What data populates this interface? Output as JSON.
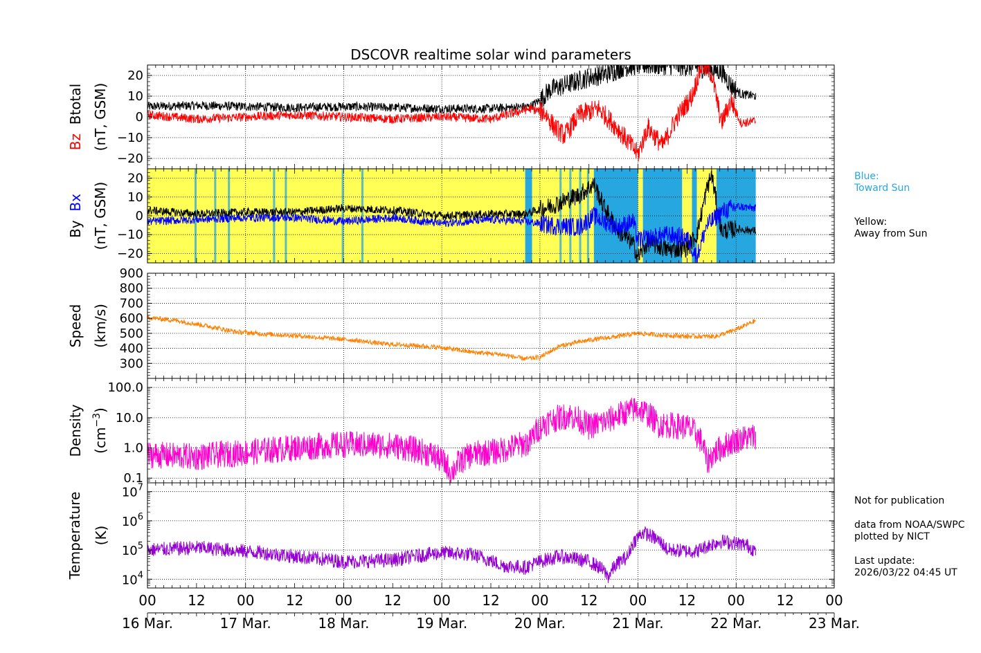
{
  "chart_data": {
    "title": "DSCOVR realtime solar wind parameters",
    "type": "line",
    "x_axis": {
      "hour_ticks": [
        "00",
        "12",
        "00",
        "12",
        "00",
        "12",
        "00",
        "12",
        "00",
        "12",
        "00",
        "12",
        "00",
        "12",
        "00"
      ],
      "date_labels": [
        "16 Mar.",
        "17 Mar.",
        "18 Mar.",
        "19 Mar.",
        "20 Mar.",
        "21 Mar.",
        "22 Mar.",
        "23 Mar."
      ],
      "range_days": [
        0,
        7
      ]
    },
    "panels": [
      {
        "id": "bfield",
        "label_parts": [
          {
            "text": "Bz",
            "color": "#ff0000"
          },
          {
            "text": "Btotal",
            "color": "#000000"
          }
        ],
        "unit": "(nT, GSM)",
        "ylim": [
          -25,
          25
        ],
        "yticks": [
          -20,
          -10,
          0,
          10,
          20
        ],
        "tick_labels": [
          "−20",
          "−10",
          "0",
          "10",
          "20"
        ],
        "series": [
          {
            "name": "Btotal",
            "color": "#000000",
            "keys": [
              [
                0,
                5
              ],
              [
                0.5,
                5.5
              ],
              [
                1,
                5
              ],
              [
                1.5,
                4.5
              ],
              [
                2,
                5
              ],
              [
                2.5,
                4.5
              ],
              [
                3,
                4
              ],
              [
                3.5,
                4
              ],
              [
                3.9,
                5
              ],
              [
                4.0,
                8
              ],
              [
                4.1,
                13
              ],
              [
                4.3,
                16
              ],
              [
                4.5,
                19
              ],
              [
                4.7,
                21
              ],
              [
                4.85,
                24
              ],
              [
                5.0,
                25
              ],
              [
                5.3,
                25
              ],
              [
                5.6,
                24
              ],
              [
                5.85,
                22
              ],
              [
                5.95,
                15
              ],
              [
                6.05,
                11
              ],
              [
                6.2,
                10
              ]
            ]
          },
          {
            "name": "Bz",
            "color": "#ff0000",
            "keys": [
              [
                0,
                1
              ],
              [
                0.5,
                -1
              ],
              [
                1,
                0
              ],
              [
                1.5,
                1
              ],
              [
                2,
                0
              ],
              [
                2.5,
                -1
              ],
              [
                3,
                0
              ],
              [
                3.5,
                -1
              ],
              [
                3.9,
                4
              ],
              [
                4.05,
                2
              ],
              [
                4.15,
                -5
              ],
              [
                4.25,
                -9
              ],
              [
                4.4,
                1
              ],
              [
                4.6,
                4
              ],
              [
                4.8,
                -6
              ],
              [
                5.0,
                -18
              ],
              [
                5.1,
                -5
              ],
              [
                5.25,
                -14
              ],
              [
                5.4,
                0
              ],
              [
                5.55,
                10
              ],
              [
                5.65,
                25
              ],
              [
                5.75,
                21
              ],
              [
                5.85,
                -3
              ],
              [
                5.95,
                8
              ],
              [
                6.05,
                -3
              ],
              [
                6.2,
                -2
              ]
            ]
          }
        ]
      },
      {
        "id": "imf",
        "label_parts": [
          {
            "text": "By",
            "color": "#000000"
          },
          {
            "text": "Bx",
            "color": "#0000ff"
          }
        ],
        "unit": "(nT, GSM)",
        "ylim": [
          -25,
          25
        ],
        "yticks": [
          -20,
          -10,
          0,
          10,
          20
        ],
        "tick_labels": [
          "−20",
          "−10",
          "0",
          "10",
          "20"
        ],
        "sector_colors": {
          "toward": "#27a7e0",
          "away": "#ffff55"
        },
        "sectors": [
          {
            "start": 0.0,
            "end": 3.85,
            "sector": "away"
          },
          {
            "start": 3.85,
            "end": 3.92,
            "sector": "toward"
          },
          {
            "start": 3.92,
            "end": 4.55,
            "sector": "away"
          },
          {
            "start": 4.55,
            "end": 5.0,
            "sector": "toward"
          },
          {
            "start": 5.0,
            "end": 5.05,
            "sector": "away"
          },
          {
            "start": 5.05,
            "end": 5.45,
            "sector": "toward"
          },
          {
            "start": 5.45,
            "end": 5.55,
            "sector": "away"
          },
          {
            "start": 5.55,
            "end": 5.6,
            "sector": "toward"
          },
          {
            "start": 5.6,
            "end": 5.8,
            "sector": "away"
          },
          {
            "start": 5.8,
            "end": 6.2,
            "sector": "toward"
          }
        ],
        "sector_stripes": [
          0.48,
          0.68,
          0.82,
          1.28,
          1.4,
          1.98,
          2.18,
          4.2,
          4.3,
          4.4,
          4.48
        ],
        "series": [
          {
            "name": "By",
            "color": "#000000",
            "keys": [
              [
                0,
                3
              ],
              [
                0.5,
                1
              ],
              [
                1,
                2
              ],
              [
                1.5,
                2
              ],
              [
                2,
                4
              ],
              [
                2.5,
                3
              ],
              [
                3,
                0
              ],
              [
                3.5,
                1
              ],
              [
                3.85,
                1
              ],
              [
                4.1,
                5
              ],
              [
                4.4,
                11
              ],
              [
                4.55,
                17
              ],
              [
                4.65,
                5
              ],
              [
                4.8,
                -8
              ],
              [
                4.95,
                -15
              ],
              [
                5.0,
                -22
              ],
              [
                5.1,
                -14
              ],
              [
                5.3,
                -18
              ],
              [
                5.5,
                -17
              ],
              [
                5.6,
                -10
              ],
              [
                5.7,
                14
              ],
              [
                5.75,
                22
              ],
              [
                5.85,
                -8
              ],
              [
                6.0,
                -7
              ],
              [
                6.2,
                -8
              ]
            ]
          },
          {
            "name": "Bx",
            "color": "#0000ff",
            "keys": [
              [
                0,
                -3
              ],
              [
                0.5,
                -2
              ],
              [
                1,
                -1
              ],
              [
                1.5,
                -1
              ],
              [
                2,
                -3
              ],
              [
                2.5,
                -1
              ],
              [
                3,
                -4
              ],
              [
                3.5,
                -2
              ],
              [
                3.85,
                -3
              ],
              [
                4.1,
                -5
              ],
              [
                4.4,
                -6
              ],
              [
                4.55,
                0
              ],
              [
                4.65,
                -3
              ],
              [
                4.8,
                -6
              ],
              [
                4.95,
                -3
              ],
              [
                5.0,
                -13
              ],
              [
                5.1,
                -12
              ],
              [
                5.3,
                -10
              ],
              [
                5.5,
                -12
              ],
              [
                5.6,
                -22
              ],
              [
                5.7,
                -5
              ],
              [
                5.75,
                -3
              ],
              [
                5.85,
                2
              ],
              [
                6.0,
                5
              ],
              [
                6.2,
                4
              ]
            ]
          }
        ]
      },
      {
        "id": "speed",
        "label_parts": [
          {
            "text": "Speed",
            "color": "#000000"
          }
        ],
        "unit": "(km/s)",
        "ylim": [
          200,
          900
        ],
        "yticks": [
          300,
          400,
          500,
          600,
          700,
          800,
          900
        ],
        "tick_labels": [
          "300",
          "400",
          "500",
          "600",
          "700",
          "800",
          "900"
        ],
        "series": [
          {
            "name": "Speed",
            "color": "#ff8000",
            "keys": [
              [
                0,
                605
              ],
              [
                0.3,
                585
              ],
              [
                0.6,
                550
              ],
              [
                0.9,
                510
              ],
              [
                1.2,
                495
              ],
              [
                1.5,
                485
              ],
              [
                1.8,
                470
              ],
              [
                2.1,
                455
              ],
              [
                2.4,
                430
              ],
              [
                2.7,
                420
              ],
              [
                3.0,
                405
              ],
              [
                3.3,
                375
              ],
              [
                3.6,
                360
              ],
              [
                3.85,
                330
              ],
              [
                4.0,
                340
              ],
              [
                4.2,
                415
              ],
              [
                4.5,
                455
              ],
              [
                4.8,
                480
              ],
              [
                5.0,
                500
              ],
              [
                5.2,
                490
              ],
              [
                5.5,
                480
              ],
              [
                5.8,
                480
              ],
              [
                6.0,
                525
              ],
              [
                6.2,
                585
              ]
            ]
          }
        ]
      },
      {
        "id": "density",
        "label_parts": [
          {
            "text": "Density",
            "color": "#000000"
          }
        ],
        "unit_html": "(cm<sup>−3</sup>)",
        "scale": "log",
        "ylim": [
          0.07,
          200
        ],
        "yticks": [
          0.1,
          1.0,
          10.0,
          100.0
        ],
        "tick_labels": [
          "0.1",
          "1.0",
          "10.0",
          "100.0"
        ],
        "series": [
          {
            "name": "Density",
            "color": "#ff00cc",
            "keys": [
              [
                0,
                0.6
              ],
              [
                0.5,
                0.5
              ],
              [
                1.0,
                0.7
              ],
              [
                1.5,
                1.0
              ],
              [
                2.0,
                1.3
              ],
              [
                2.5,
                1.2
              ],
              [
                2.9,
                0.6
              ],
              [
                3.1,
                0.15
              ],
              [
                3.3,
                0.6
              ],
              [
                3.6,
                0.8
              ],
              [
                3.9,
                1.5
              ],
              [
                4.1,
                8
              ],
              [
                4.3,
                12
              ],
              [
                4.5,
                5
              ],
              [
                4.7,
                8
              ],
              [
                5.0,
                20
              ],
              [
                5.2,
                6
              ],
              [
                5.5,
                5
              ],
              [
                5.7,
                0.3
              ],
              [
                5.85,
                1.0
              ],
              [
                6.0,
                1.8
              ],
              [
                6.2,
                2.5
              ]
            ]
          }
        ]
      },
      {
        "id": "temperature",
        "label_parts": [
          {
            "text": "Temperature",
            "color": "#000000"
          }
        ],
        "unit": "(K)",
        "scale": "log",
        "ylim": [
          5000,
          20000000
        ],
        "yticks": [
          10000,
          100000,
          1000000,
          10000000
        ],
        "tick_exponents": [
          "4",
          "5",
          "6",
          "7"
        ],
        "tick_base": "10",
        "series": [
          {
            "name": "Temperature",
            "color": "#9400d3",
            "keys": [
              [
                0,
                100000
              ],
              [
                0.5,
                120000
              ],
              [
                1.0,
                90000
              ],
              [
                1.5,
                60000
              ],
              [
                2.0,
                40000
              ],
              [
                2.5,
                45000
              ],
              [
                3.0,
                80000
              ],
              [
                3.3,
                70000
              ],
              [
                3.6,
                30000
              ],
              [
                3.85,
                25000
              ],
              [
                4.2,
                60000
              ],
              [
                4.5,
                40000
              ],
              [
                4.7,
                12000
              ],
              [
                4.9,
                60000
              ],
              [
                5.05,
                400000
              ],
              [
                5.3,
                100000
              ],
              [
                5.6,
                90000
              ],
              [
                5.85,
                200000
              ],
              [
                6.1,
                150000
              ],
              [
                6.2,
                90000
              ]
            ]
          }
        ]
      }
    ]
  },
  "legend_blue": "Blue:\nToward Sun",
  "legend_yellow": "Yellow:\nAway from Sun",
  "notice": "Not for publication",
  "credit": "data from NOAA/SWPC\nplotted by NICT",
  "last_update": "Last update:\n2026/03/22 04:45 UT",
  "colors": {
    "legend_blue_text": "#27a7e0"
  }
}
